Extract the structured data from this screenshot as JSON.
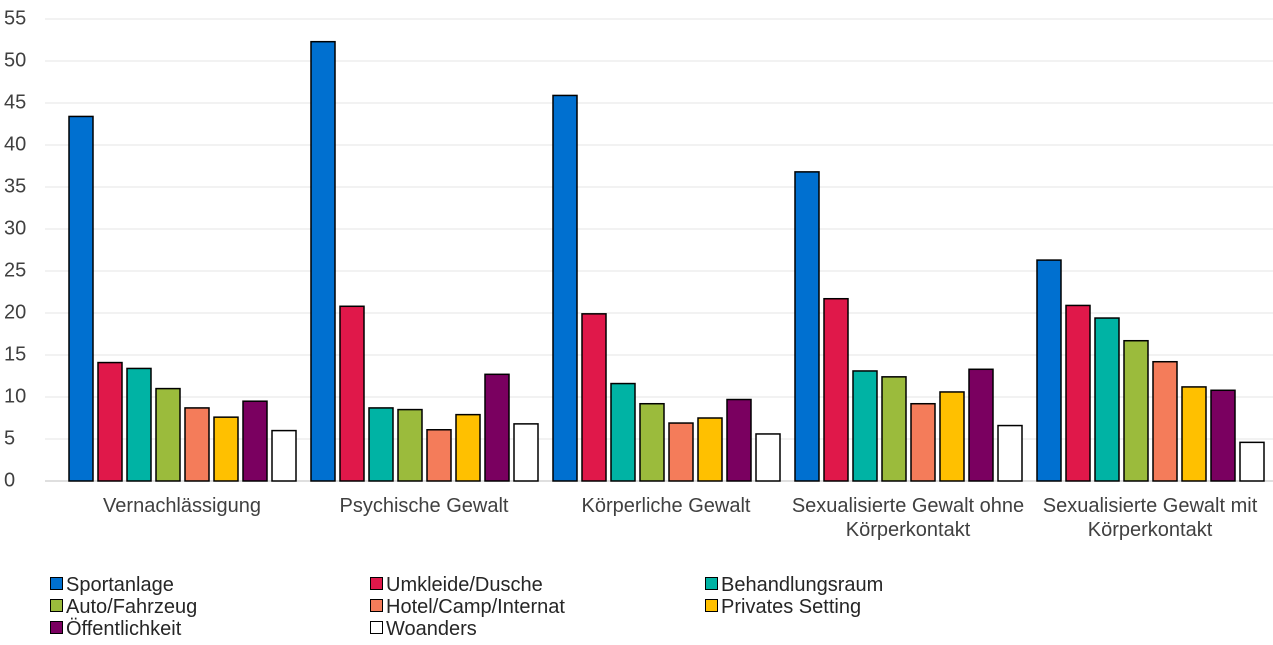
{
  "chart_data": {
    "type": "bar",
    "categories": [
      "Vernachlässigung",
      "Psychische Gewalt",
      "Körperliche Gewalt",
      "Sexualisierte Gewalt ohne Körperkontakt",
      "Sexualisierte Gewalt mit Körperkontakt"
    ],
    "series": [
      {
        "name": "Sportanlage",
        "color": "#0070d0",
        "values": [
          43.4,
          52.3,
          45.9,
          36.8,
          26.3
        ]
      },
      {
        "name": "Umkleide/Dusche",
        "color": "#e0184a",
        "values": [
          14.1,
          20.8,
          19.9,
          21.7,
          20.9
        ]
      },
      {
        "name": "Behandlungsraum",
        "color": "#00b3a4",
        "values": [
          13.4,
          8.7,
          11.6,
          13.1,
          19.4
        ]
      },
      {
        "name": "Auto/Fahrzeug",
        "color": "#9bbb3c",
        "values": [
          11.0,
          8.5,
          9.2,
          12.4,
          16.7
        ]
      },
      {
        "name": "Hotel/Camp/Internat",
        "color": "#f47c5a",
        "values": [
          8.7,
          6.1,
          6.9,
          9.2,
          14.2
        ]
      },
      {
        "name": "Privates Setting",
        "color": "#ffc000",
        "values": [
          7.6,
          7.9,
          7.5,
          10.6,
          11.2
        ]
      },
      {
        "name": "Öffentlichkeit",
        "color": "#7a0060",
        "values": [
          9.5,
          12.7,
          9.7,
          13.3,
          10.8
        ]
      },
      {
        "name": "Woanders",
        "color": "#ffffff",
        "values": [
          6.0,
          6.8,
          5.6,
          6.6,
          4.6
        ]
      }
    ],
    "ylim": [
      0,
      55
    ],
    "yticks": [
      0,
      5,
      10,
      15,
      20,
      25,
      30,
      35,
      40,
      45,
      50,
      55
    ],
    "grid": true
  }
}
